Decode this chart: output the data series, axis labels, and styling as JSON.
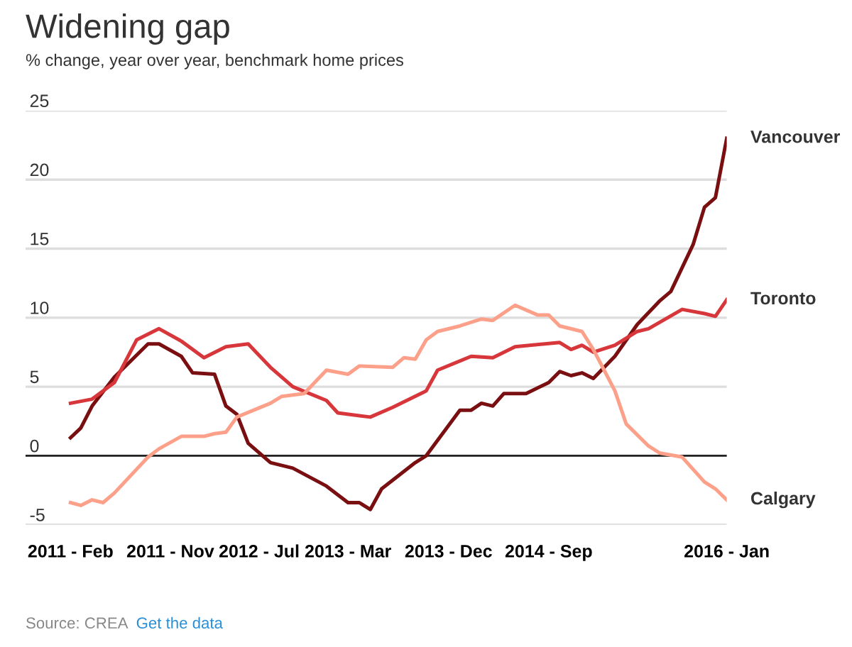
{
  "chart_data": {
    "type": "line",
    "title": "Widening gap",
    "subtitle": "% change, year over year, benchmark home prices",
    "annotations": [
      "Source: CREA",
      "Get the data"
    ],
    "ylim": [
      -5,
      25
    ],
    "yticks": [
      -5,
      0,
      5,
      10,
      15,
      20,
      25
    ],
    "xlim": [
      "2010-10",
      "2016-01"
    ],
    "xticks": [
      {
        "value": "2011-02",
        "label": "2011 - Feb"
      },
      {
        "value": "2011-11",
        "label": "2011 - Nov"
      },
      {
        "value": "2012-07",
        "label": "2012 - Jul"
      },
      {
        "value": "2013-03",
        "label": "2013 - Mar"
      },
      {
        "value": "2013-12",
        "label": "2013 - Dec"
      },
      {
        "value": "2014-09",
        "label": "2014 - Sep"
      },
      {
        "value": "2016-01",
        "label": "2016 - Jan"
      }
    ],
    "grid": "y",
    "legend": false,
    "marker": "none",
    "line_style": "solid",
    "ref_lines": [
      {
        "axis": "y",
        "value": 0,
        "color": "#222222"
      }
    ],
    "series": [
      {
        "name": "Vancouver",
        "color": "#7a0f12",
        "x": [
          "2011-02",
          "2011-03",
          "2011-04",
          "2011-06",
          "2011-09",
          "2011-10",
          "2011-12",
          "2012-01",
          "2012-03",
          "2012-04",
          "2012-05",
          "2012-06",
          "2012-08",
          "2012-10",
          "2013-01",
          "2013-03",
          "2013-04",
          "2013-05",
          "2013-06",
          "2013-09",
          "2013-10",
          "2014-01",
          "2014-02",
          "2014-03",
          "2014-04",
          "2014-05",
          "2014-07",
          "2014-09",
          "2014-10",
          "2014-11",
          "2014-12",
          "2015-01",
          "2015-03",
          "2015-05",
          "2015-07",
          "2015-08",
          "2015-10",
          "2015-11",
          "2015-12",
          "2016-01"
        ],
        "values": [
          1.3,
          2.0,
          3.6,
          5.7,
          8.1,
          8.1,
          7.2,
          6.0,
          5.9,
          3.6,
          3.0,
          0.9,
          -0.5,
          -0.9,
          -2.2,
          -3.4,
          -3.4,
          -3.9,
          -2.4,
          -0.5,
          0.0,
          3.3,
          3.3,
          3.8,
          3.6,
          4.5,
          4.5,
          5.3,
          6.1,
          5.8,
          6.0,
          5.6,
          7.2,
          9.5,
          11.2,
          11.9,
          15.3,
          18.0,
          18.7,
          23.0
        ]
      },
      {
        "name": "Toronto",
        "color": "#d7363a",
        "x": [
          "2011-02",
          "2011-04",
          "2011-06",
          "2011-08",
          "2011-10",
          "2011-12",
          "2012-02",
          "2012-04",
          "2012-06",
          "2012-08",
          "2012-10",
          "2013-01",
          "2013-02",
          "2013-05",
          "2013-07",
          "2013-10",
          "2013-11",
          "2014-02",
          "2014-04",
          "2014-06",
          "2014-10",
          "2014-11",
          "2014-12",
          "2015-01",
          "2015-03",
          "2015-05",
          "2015-06",
          "2015-09",
          "2015-11",
          "2015-12",
          "2016-01"
        ],
        "values": [
          3.8,
          4.1,
          5.3,
          8.4,
          9.2,
          8.3,
          7.1,
          7.9,
          8.1,
          6.4,
          5.0,
          4.0,
          3.1,
          2.8,
          3.5,
          4.7,
          6.2,
          7.2,
          7.1,
          7.9,
          8.2,
          7.7,
          8.0,
          7.5,
          8.0,
          9.0,
          9.2,
          10.6,
          10.3,
          10.1,
          11.3
        ]
      },
      {
        "name": "Calgary",
        "color": "#fca08a",
        "x": [
          "2011-02",
          "2011-03",
          "2011-04",
          "2011-05",
          "2011-06",
          "2011-09",
          "2011-10",
          "2011-12",
          "2012-02",
          "2012-03",
          "2012-04",
          "2012-05",
          "2012-08",
          "2012-09",
          "2012-11",
          "2013-01",
          "2013-03",
          "2013-04",
          "2013-07",
          "2013-08",
          "2013-09",
          "2013-10",
          "2013-11",
          "2014-01",
          "2014-03",
          "2014-04",
          "2014-06",
          "2014-08",
          "2014-09",
          "2014-10",
          "2014-12",
          "2015-01",
          "2015-03",
          "2015-04",
          "2015-06",
          "2015-07",
          "2015-09",
          "2015-11",
          "2015-12",
          "2016-01"
        ],
        "values": [
          -3.4,
          -3.6,
          -3.2,
          -3.4,
          -2.7,
          -0.1,
          0.5,
          1.4,
          1.4,
          1.6,
          1.7,
          2.8,
          3.8,
          4.3,
          4.5,
          6.2,
          5.9,
          6.5,
          6.4,
          7.1,
          7.0,
          8.4,
          9.0,
          9.4,
          9.9,
          9.8,
          10.9,
          10.2,
          10.2,
          9.4,
          9.0,
          7.7,
          4.7,
          2.3,
          0.7,
          0.2,
          -0.1,
          -1.9,
          -2.4,
          -3.2
        ]
      }
    ]
  }
}
